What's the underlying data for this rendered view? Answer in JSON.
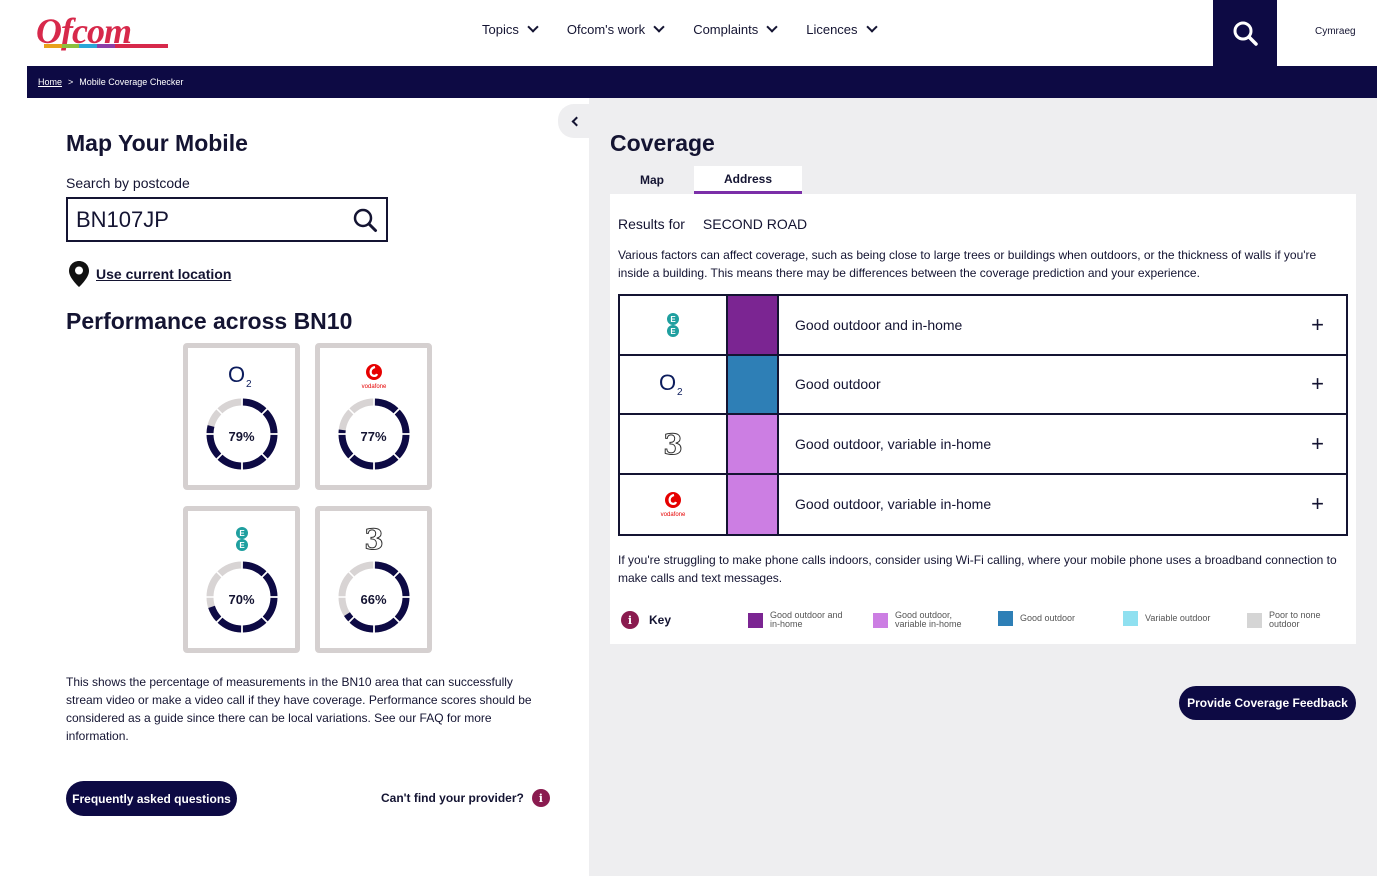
{
  "header": {
    "logo_text": "Ofcom",
    "nav": [
      {
        "label": "Topics"
      },
      {
        "label": "Ofcom's work"
      },
      {
        "label": "Complaints"
      },
      {
        "label": "Licences"
      }
    ],
    "language_label": "Cymraeg",
    "search_icon": "search-icon"
  },
  "breadcrumb": {
    "home": "Home",
    "separator": ">",
    "current": "Mobile Coverage Checker"
  },
  "left": {
    "title": "Map Your Mobile",
    "search_label": "Search by postcode",
    "postcode_value": "BN107JP",
    "use_location": "Use current location",
    "performance_title": "Performance across BN10",
    "performance": [
      {
        "brand": "O2",
        "percent_label": "79%",
        "percent": 79
      },
      {
        "brand": "vodafone",
        "percent_label": "77%",
        "percent": 77
      },
      {
        "brand": "EE",
        "percent_label": "70%",
        "percent": 70
      },
      {
        "brand": "3",
        "percent_label": "66%",
        "percent": 66
      }
    ],
    "description": "This shows the percentage of measurements in the BN10 area that can successfully stream video or make a video call if they have coverage. Performance scores should be considered as a guide since there can be local variations. See our FAQ for more information.",
    "faq_button": "Frequently asked questions",
    "provider_link": "Can't find your provider?",
    "info_glyph": "i"
  },
  "right": {
    "title": "Coverage",
    "tabs": [
      {
        "label": "Map"
      },
      {
        "label": "Address"
      }
    ],
    "results_for_label": "Results for",
    "results_address": "SECOND ROAD",
    "factors_text": "Various factors can affect coverage, such as being close to large trees or buildings when outdoors, or the thickness of walls if you're inside a building. This means there may be differences between the coverage prediction and your experience.",
    "coverage": [
      {
        "brand": "EE",
        "status": "Good outdoor and in-home",
        "color": "#7b2592"
      },
      {
        "brand": "O2",
        "status": "Good outdoor",
        "color": "#2e7fb6"
      },
      {
        "brand": "3",
        "status": "Good outdoor, variable in-home",
        "color": "#cc7ee3"
      },
      {
        "brand": "vodafone",
        "status": "Good outdoor, variable in-home",
        "color": "#cc7ee3"
      }
    ],
    "expand_glyph": "+",
    "wifi_note": "If you're struggling to make phone calls indoors, consider using Wi-Fi calling, where your mobile phone uses a broadband connection to make calls and text messages.",
    "key_label": "Key",
    "key": [
      {
        "label": "Good outdoor and in-home",
        "color": "#7b2592"
      },
      {
        "label": "Good outdoor, variable in-home",
        "color": "#cc7ee3"
      },
      {
        "label": "Good outdoor",
        "color": "#2e7fb6"
      },
      {
        "label": "Variable outdoor",
        "color": "#8fe0f0"
      },
      {
        "label": "Poor to none outdoor",
        "color": "#d5d5d5"
      }
    ],
    "feedback_button": "Provide Coverage Feedback"
  },
  "colors": {
    "navy": "#0d0a44",
    "brand_red": "#d7294b",
    "info": "#8a1b4f",
    "ee_teal": "#1f9f9f",
    "vodafone_red": "#e60000"
  }
}
